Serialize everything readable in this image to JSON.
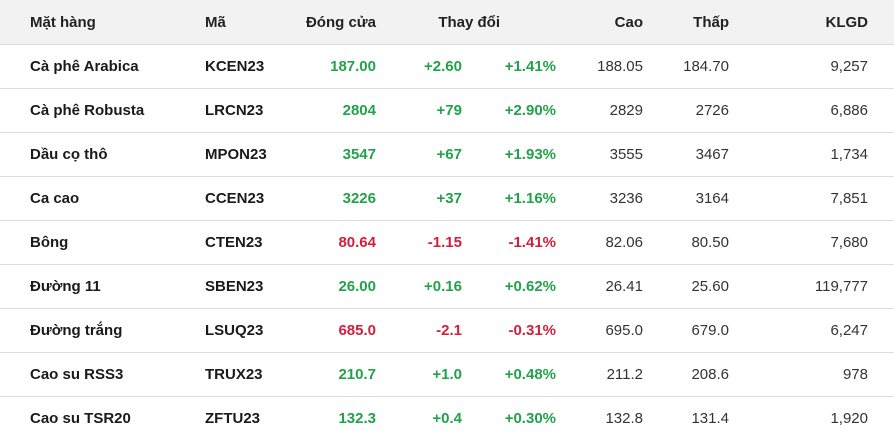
{
  "headers": {
    "name": "Mặt hàng",
    "code": "Mã",
    "close": "Đóng cửa",
    "change": "Thay đổi",
    "high": "Cao",
    "low": "Thấp",
    "volume": "KLGD"
  },
  "colors": {
    "up": "#22a24a",
    "down": "#d31f3a"
  },
  "rows": [
    {
      "name": "Cà phê Arabica",
      "code": "KCEN23",
      "close": "187.00",
      "change": "+2.60",
      "pct": "+1.41%",
      "high": "188.05",
      "low": "184.70",
      "volume": "9,257",
      "trend": "up"
    },
    {
      "name": "Cà phê Robusta",
      "code": "LRCN23",
      "close": "2804",
      "change": "+79",
      "pct": "+2.90%",
      "high": "2829",
      "low": "2726",
      "volume": "6,886",
      "trend": "up"
    },
    {
      "name": "Dầu cọ thô",
      "code": "MPON23",
      "close": "3547",
      "change": "+67",
      "pct": "+1.93%",
      "high": "3555",
      "low": "3467",
      "volume": "1,734",
      "trend": "up"
    },
    {
      "name": "Ca cao",
      "code": "CCEN23",
      "close": "3226",
      "change": "+37",
      "pct": "+1.16%",
      "high": "3236",
      "low": "3164",
      "volume": "7,851",
      "trend": "up"
    },
    {
      "name": "Bông",
      "code": "CTEN23",
      "close": "80.64",
      "change": "-1.15",
      "pct": "-1.41%",
      "high": "82.06",
      "low": "80.50",
      "volume": "7,680",
      "trend": "down"
    },
    {
      "name": "Đường 11",
      "code": "SBEN23",
      "close": "26.00",
      "change": "+0.16",
      "pct": "+0.62%",
      "high": "26.41",
      "low": "25.60",
      "volume": "119,777",
      "trend": "up"
    },
    {
      "name": "Đường trắng",
      "code": "LSUQ23",
      "close": "685.0",
      "change": "-2.1",
      "pct": "-0.31%",
      "high": "695.0",
      "low": "679.0",
      "volume": "6,247",
      "trend": "down"
    },
    {
      "name": "Cao su RSS3",
      "code": "TRUX23",
      "close": "210.7",
      "change": "+1.0",
      "pct": "+0.48%",
      "high": "211.2",
      "low": "208.6",
      "volume": "978",
      "trend": "up"
    },
    {
      "name": "Cao su TSR20",
      "code": "ZFTU23",
      "close": "132.3",
      "change": "+0.4",
      "pct": "+0.30%",
      "high": "132.8",
      "low": "131.4",
      "volume": "1,920",
      "trend": "up"
    }
  ]
}
